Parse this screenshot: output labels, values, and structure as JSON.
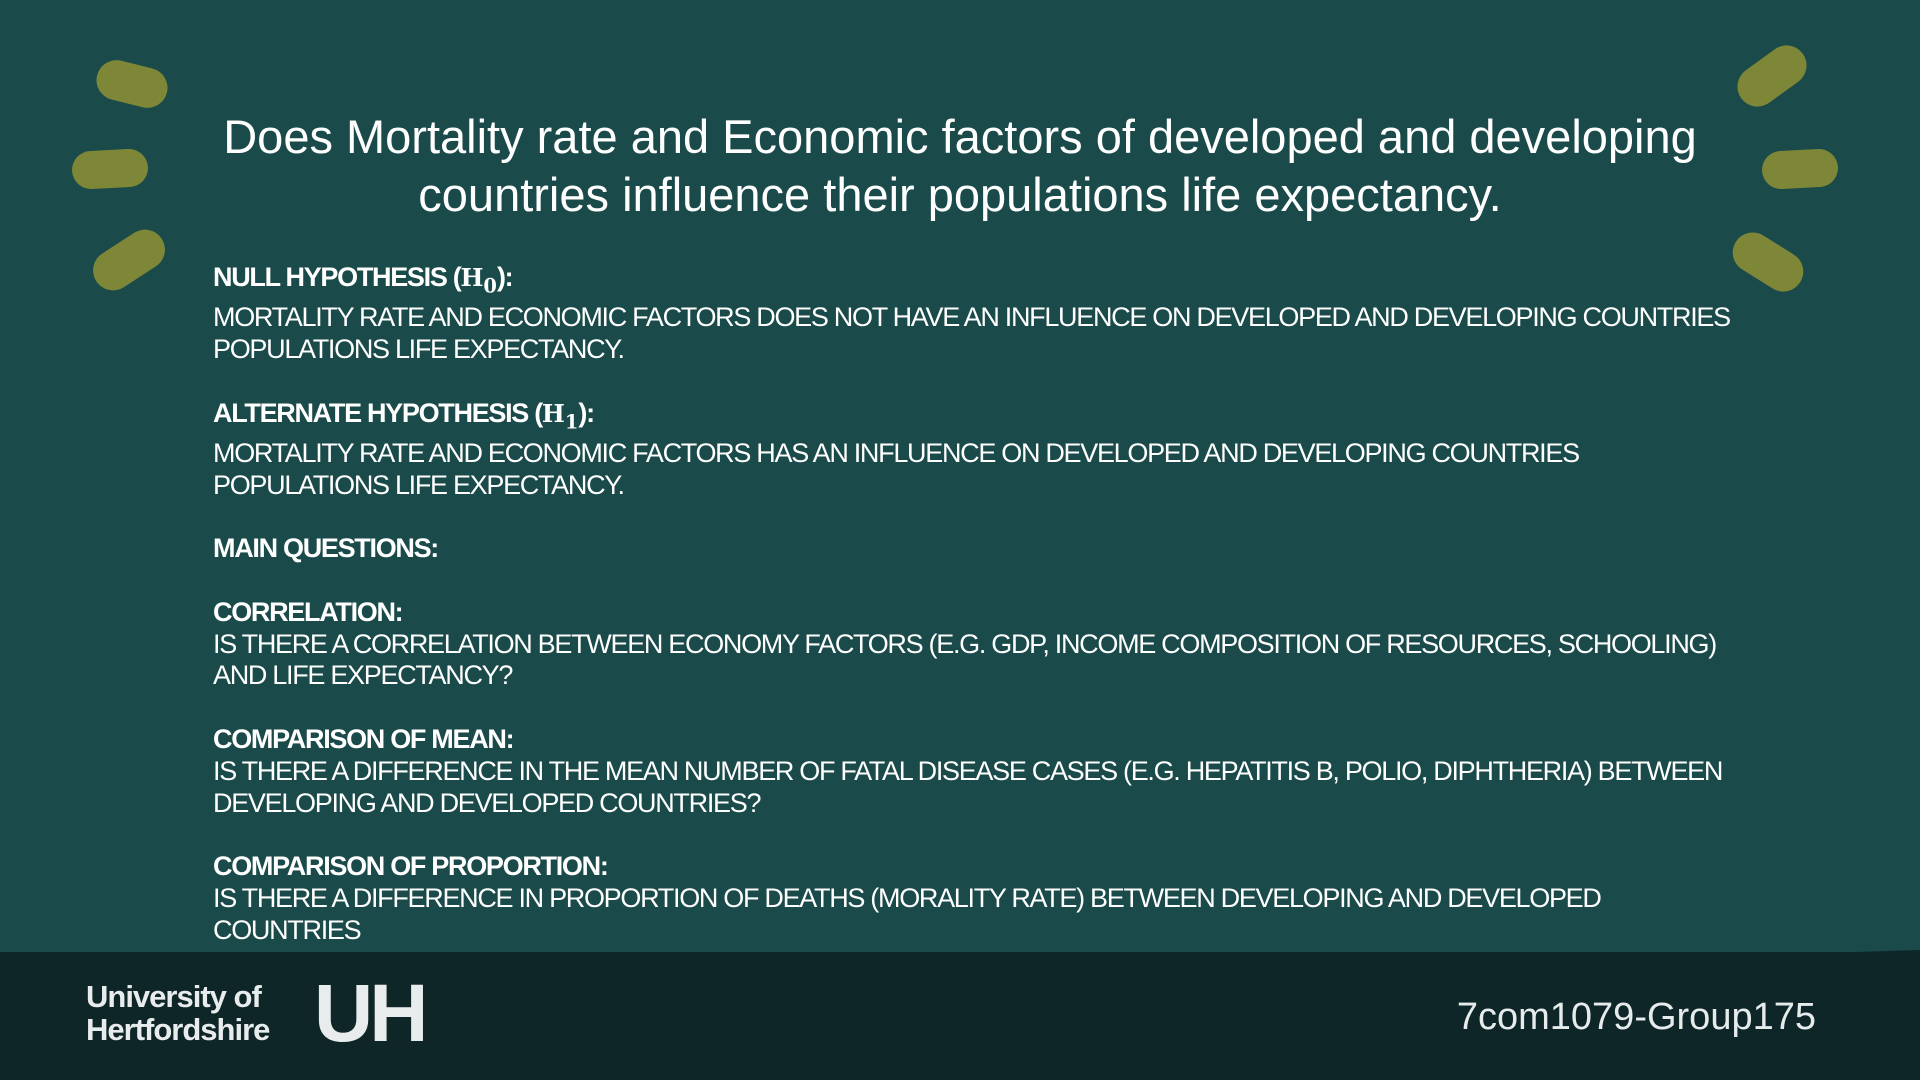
{
  "title": "Does Mortality rate and Economic factors of developed and developing countries influence their populations life expectancy.",
  "null_hypothesis": {
    "label_prefix": "NULL HYPOTHESIS (",
    "symbol": "H",
    "subscript": "0",
    "label_suffix": "):",
    "text": "MORTALITY RATE AND ECONOMIC FACTORS DOES NOT HAVE AN INFLUENCE ON DEVELOPED AND DEVELOPING COUNTRIES POPULATIONS LIFE EXPECTANCY."
  },
  "alternate_hypothesis": {
    "label_prefix": "ALTERNATE HYPOTHESIS (",
    "symbol": "H",
    "subscript": "1",
    "label_suffix": "):",
    "text": "MORTALITY RATE AND ECONOMIC FACTORS HAS AN INFLUENCE ON DEVELOPED AND DEVELOPING COUNTRIES POPULATIONS LIFE EXPECTANCY."
  },
  "main_questions_heading": "MAIN QUESTIONS:",
  "questions": {
    "correlation": {
      "heading": "CORRELATION:",
      "text": "IS THERE A CORRELATION BETWEEN ECONOMY FACTORS (E.G. GDP, INCOME COMPOSITION OF RESOURCES, SCHOOLING) AND LIFE EXPECTANCY?"
    },
    "comparison_of_mean": {
      "heading": "COMPARISON OF MEAN:",
      "text": "IS THERE A DIFFERENCE IN THE MEAN NUMBER OF FATAL DISEASE CASES (E.G. HEPATITIS B, POLIO, DIPHTHERIA) BETWEEN DEVELOPING AND DEVELOPED COUNTRIES?"
    },
    "comparison_of_proportion": {
      "heading": "COMPARISON OF PROPORTION:",
      "text": "IS THERE A DIFFERENCE IN PROPORTION OF DEATHS (MORALITY RATE) BETWEEN DEVELOPING AND DEVELOPED COUNTRIES"
    }
  },
  "footer": {
    "logo_line1": "University of",
    "logo_line2": "Hertfordshire",
    "logo_mark": "UH",
    "group_label": "7com1079-Group175"
  },
  "colors": {
    "background": "#1a4b4a",
    "footer": "#0f2628",
    "accent": "#7e8737",
    "text": "#ffffff"
  }
}
